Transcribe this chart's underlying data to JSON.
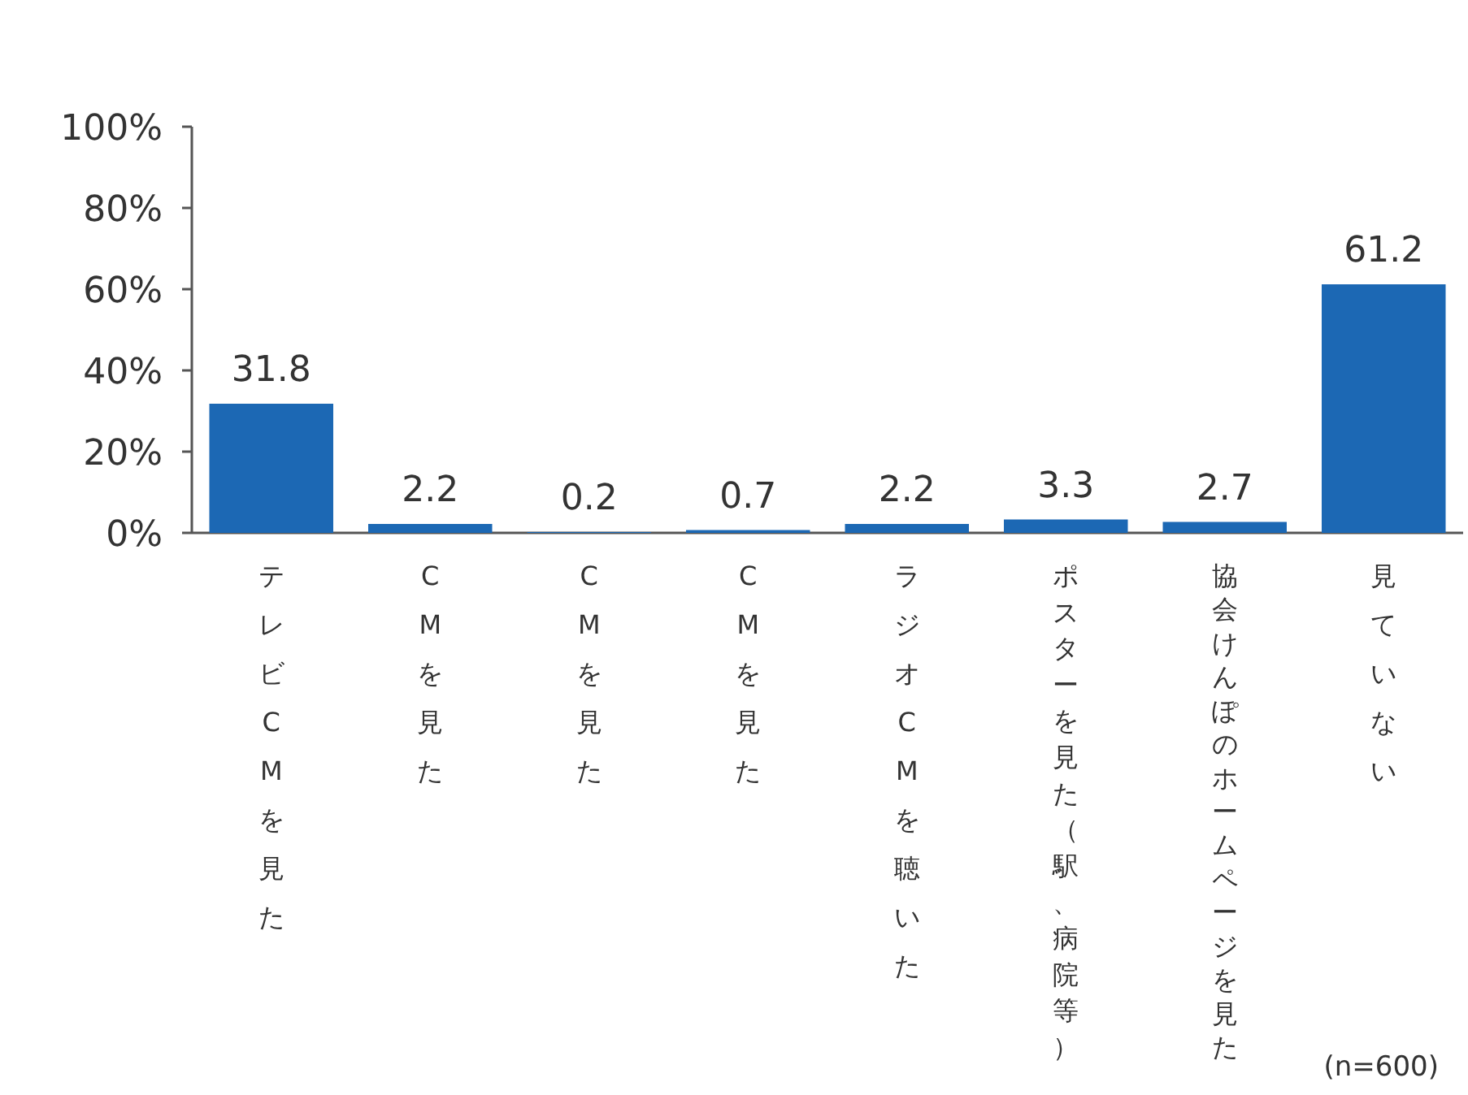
{
  "chart_data": {
    "type": "bar",
    "categories": [
      "テレビCMを見た",
      "CMを見た",
      "CMを見た",
      "CMを見た",
      "ラジオCMを聴いた",
      "ポスターを見た（駅、病院等）",
      "協会けんぽのホームページを見た",
      "見ていない"
    ],
    "values": [
      31.8,
      2.2,
      0.2,
      0.7,
      2.2,
      3.3,
      2.7,
      61.2
    ],
    "color": "#1c68b4",
    "ylim": [
      0,
      100
    ],
    "yticks": [
      {
        "value": 0,
        "label": "0%"
      },
      {
        "value": 20,
        "label": "20%"
      },
      {
        "value": 40,
        "label": "40%"
      },
      {
        "value": 60,
        "label": "60%"
      },
      {
        "value": 80,
        "label": "80%"
      },
      {
        "value": 100,
        "label": "100%"
      }
    ],
    "data_labels": true,
    "annotations": [
      "(n=600)"
    ]
  }
}
